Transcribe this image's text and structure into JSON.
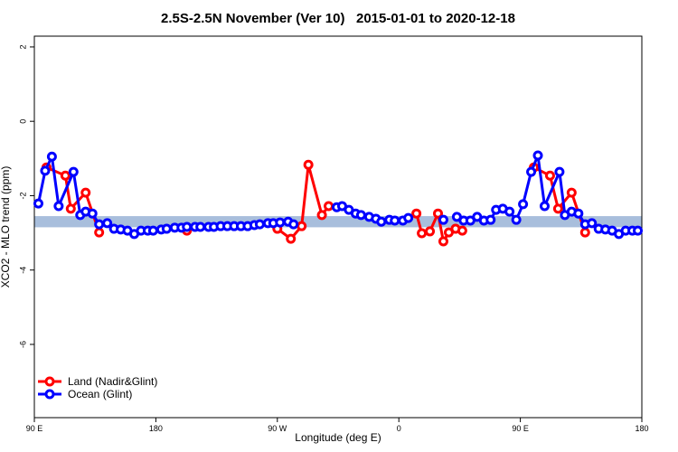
{
  "chart_data": {
    "type": "line",
    "title": "2.5S-2.5N November (Ver 10)   2015-01-01 to 2020-12-18",
    "x_label": "Longitude (deg E)",
    "y_label": "XCO2 - MLO trend (ppm)",
    "xlim": [
      90,
      540
    ],
    "ylim": [
      -7.97,
      2.29
    ],
    "xticks": [
      {
        "value": 90,
        "label": "90 E"
      },
      180,
      {
        "value": 270,
        "label": "90 W"
      },
      {
        "value": 360,
        "label": "0"
      },
      {
        "value": 450,
        "label": "90 E"
      },
      {
        "value": 540,
        "label": "180"
      }
    ],
    "yticks": [
      -6,
      -4,
      -2,
      0,
      2
    ],
    "band": [
      -2.85,
      -2.55
    ],
    "band_color": "#a8bedc",
    "legend": "bottomleft",
    "series": [
      {
        "name": "Land (Nadir&Glint)",
        "color": "#ff0000",
        "x": [
          99,
          113,
          117,
          128,
          138,
          null,
          203,
          null,
          270,
          280,
          288,
          293,
          303,
          308,
          null,
          373,
          377,
          383,
          389,
          393,
          397,
          402,
          407,
          null,
          460,
          472,
          478,
          488,
          498
        ],
        "values": [
          -1.24,
          -1.46,
          -2.35,
          -1.92,
          -2.99,
          null,
          -2.94,
          null,
          -2.89,
          -3.16,
          -2.82,
          -1.17,
          -2.52,
          -2.28,
          null,
          -2.48,
          -3.01,
          -2.96,
          -2.48,
          -3.23,
          -2.99,
          -2.89,
          -2.94,
          null,
          -1.24,
          -1.46,
          -2.35,
          -1.92,
          -2.99
        ]
      },
      {
        "name": "Ocean (Glint)",
        "color": "#0000ff",
        "x": [
          93,
          98,
          103,
          108,
          119,
          124,
          128,
          133,
          138,
          144,
          149,
          154,
          159,
          164,
          169,
          174,
          178,
          184,
          188,
          194,
          199,
          203,
          209,
          213,
          219,
          223,
          228,
          233,
          238,
          243,
          248,
          253,
          257,
          263,
          267,
          272,
          278,
          282,
          null,
          314,
          318,
          323,
          328,
          332,
          338,
          343,
          347,
          353,
          357,
          363,
          367,
          null,
          393,
          null,
          403,
          408,
          413,
          418,
          423,
          428,
          432,
          437,
          442,
          447,
          452,
          458,
          463,
          468,
          479,
          483,
          488,
          493,
          498,
          503,
          508,
          513,
          518,
          523,
          528,
          533,
          537
        ],
        "values": [
          -2.21,
          -1.33,
          -0.95,
          -2.28,
          -1.36,
          -2.52,
          -2.43,
          -2.48,
          -2.77,
          -2.74,
          -2.89,
          -2.91,
          -2.94,
          -3.03,
          -2.94,
          -2.94,
          -2.94,
          -2.91,
          -2.89,
          -2.86,
          -2.86,
          -2.84,
          -2.84,
          -2.84,
          -2.84,
          -2.84,
          -2.82,
          -2.82,
          -2.82,
          -2.82,
          -2.82,
          -2.79,
          -2.77,
          -2.74,
          -2.74,
          -2.72,
          -2.7,
          -2.77,
          null,
          -2.31,
          -2.28,
          -2.38,
          -2.48,
          -2.52,
          -2.57,
          -2.62,
          -2.7,
          -2.65,
          -2.67,
          -2.67,
          -2.6,
          null,
          -2.65,
          null,
          -2.57,
          -2.67,
          -2.67,
          -2.57,
          -2.67,
          -2.65,
          -2.38,
          -2.35,
          -2.43,
          -2.65,
          -2.23,
          -1.36,
          -0.92,
          -2.28,
          -1.36,
          -2.52,
          -2.43,
          -2.48,
          -2.77,
          -2.74,
          -2.89,
          -2.91,
          -2.94,
          -3.03,
          -2.94,
          -2.94,
          -2.94
        ]
      }
    ]
  }
}
